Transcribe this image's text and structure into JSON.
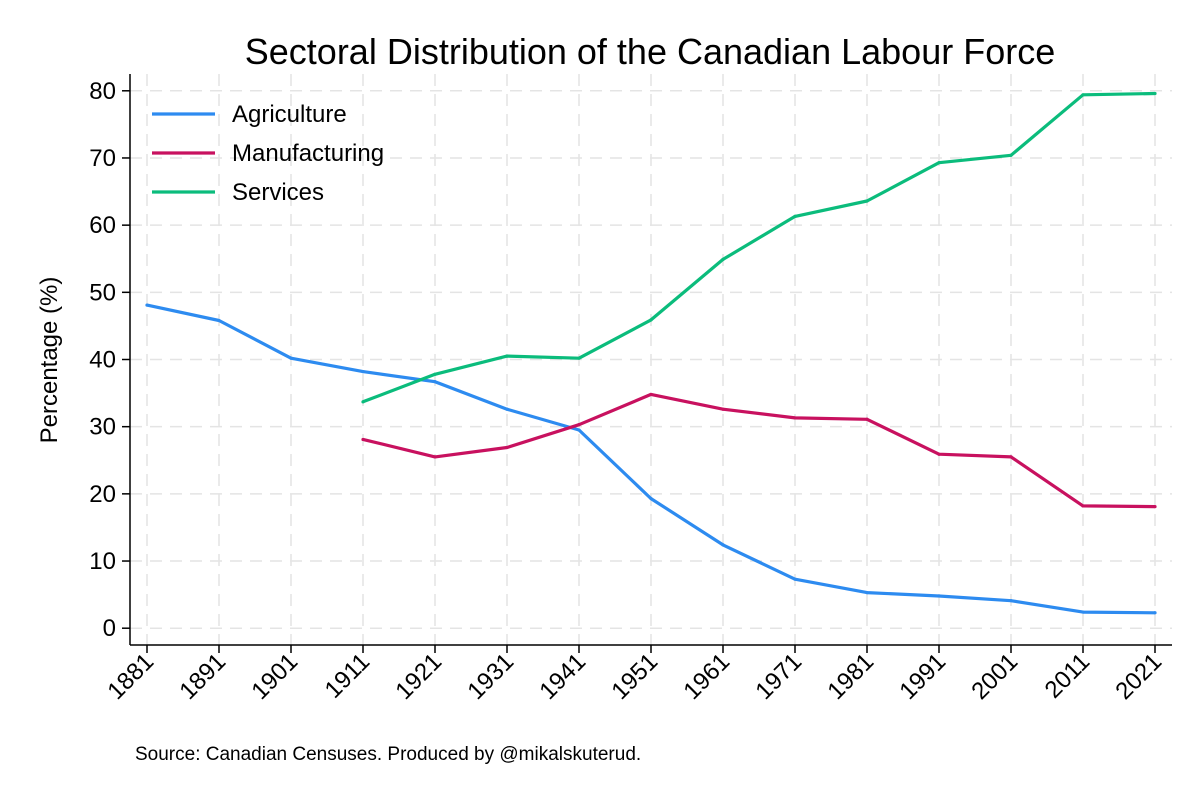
{
  "chart_data": {
    "type": "line",
    "title": "Sectoral Distribution of the Canadian Labour Force",
    "xlabel": "",
    "ylabel": "Percentage (%)",
    "x": [
      1881,
      1891,
      1901,
      1911,
      1921,
      1931,
      1941,
      1951,
      1961,
      1971,
      1981,
      1991,
      2001,
      2011,
      2021
    ],
    "xtick_labels": [
      "1881",
      "1891",
      "1901",
      "1911",
      "1921",
      "1931",
      "1941",
      "1951",
      "1961",
      "1971",
      "1981",
      "1991",
      "2001",
      "2011",
      "2021"
    ],
    "ylim": [
      -2.5,
      82.5
    ],
    "yticks": [
      0,
      10,
      20,
      30,
      40,
      50,
      60,
      70,
      80
    ],
    "ytick_labels": [
      "0",
      "10",
      "20",
      "30",
      "40",
      "50",
      "60",
      "70",
      "80"
    ],
    "grid": true,
    "legend_position": "top-left",
    "series": [
      {
        "name": "Agriculture",
        "color": "#2d8bf0",
        "values": [
          48.1,
          45.8,
          40.2,
          38.2,
          36.7,
          32.6,
          29.5,
          19.3,
          12.4,
          7.3,
          5.3,
          4.8,
          4.1,
          2.4,
          2.3
        ]
      },
      {
        "name": "Manufacturing",
        "color": "#c8115f",
        "values": [
          null,
          null,
          null,
          28.1,
          25.5,
          26.9,
          30.3,
          34.8,
          32.6,
          31.3,
          31.1,
          25.9,
          25.5,
          18.2,
          18.1
        ]
      },
      {
        "name": "Services",
        "color": "#0bbc7c",
        "values": [
          null,
          null,
          null,
          33.7,
          37.8,
          40.5,
          40.2,
          45.9,
          54.9,
          61.3,
          63.6,
          69.3,
          70.4,
          79.4,
          79.6
        ]
      }
    ]
  },
  "footer": {
    "source": "Source: Canadian Censuses. Produced by @mikalskuterud."
  }
}
